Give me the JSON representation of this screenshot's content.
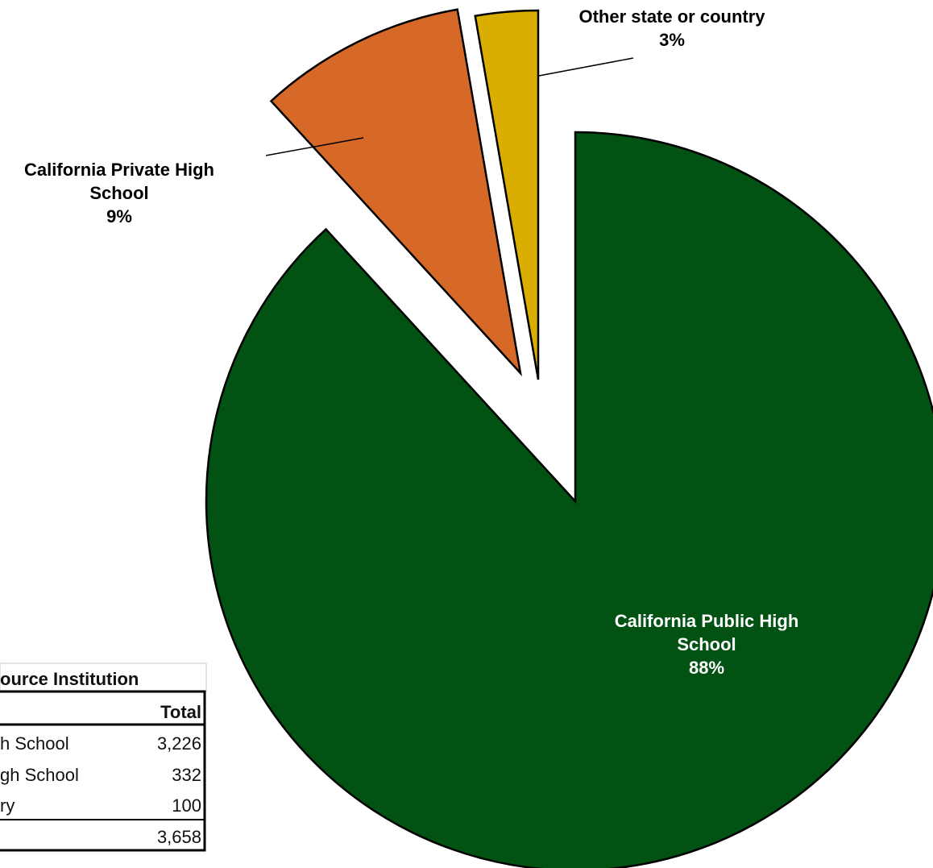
{
  "chart_data": {
    "type": "pie",
    "title": "",
    "slices": [
      {
        "name": "California Public High School",
        "label_lines": [
          "California Public High",
          "School"
        ],
        "percent_label": "88%",
        "value": 3226,
        "color": "#025213"
      },
      {
        "name": "California Private High School",
        "label_lines": [
          "California Private High",
          "School"
        ],
        "percent_label": "9%",
        "value": 332,
        "color": "#d66828"
      },
      {
        "name": "Other state or country",
        "label_lines": [
          "Other state or country"
        ],
        "percent_label": "3%",
        "value": 100,
        "color": "#d9ae00"
      }
    ],
    "exploded": [
      "California Private High School",
      "Other state or country"
    ],
    "legend": "none"
  },
  "table": {
    "title_fragment": "ource Institution",
    "header_total": "Total",
    "rows": [
      {
        "label_fragment": "h School",
        "value": "3,226"
      },
      {
        "label_fragment": "gh School",
        "value": "332"
      },
      {
        "label_fragment": "ry",
        "value": "100"
      },
      {
        "label_fragment": "",
        "value": "3,658"
      }
    ]
  }
}
